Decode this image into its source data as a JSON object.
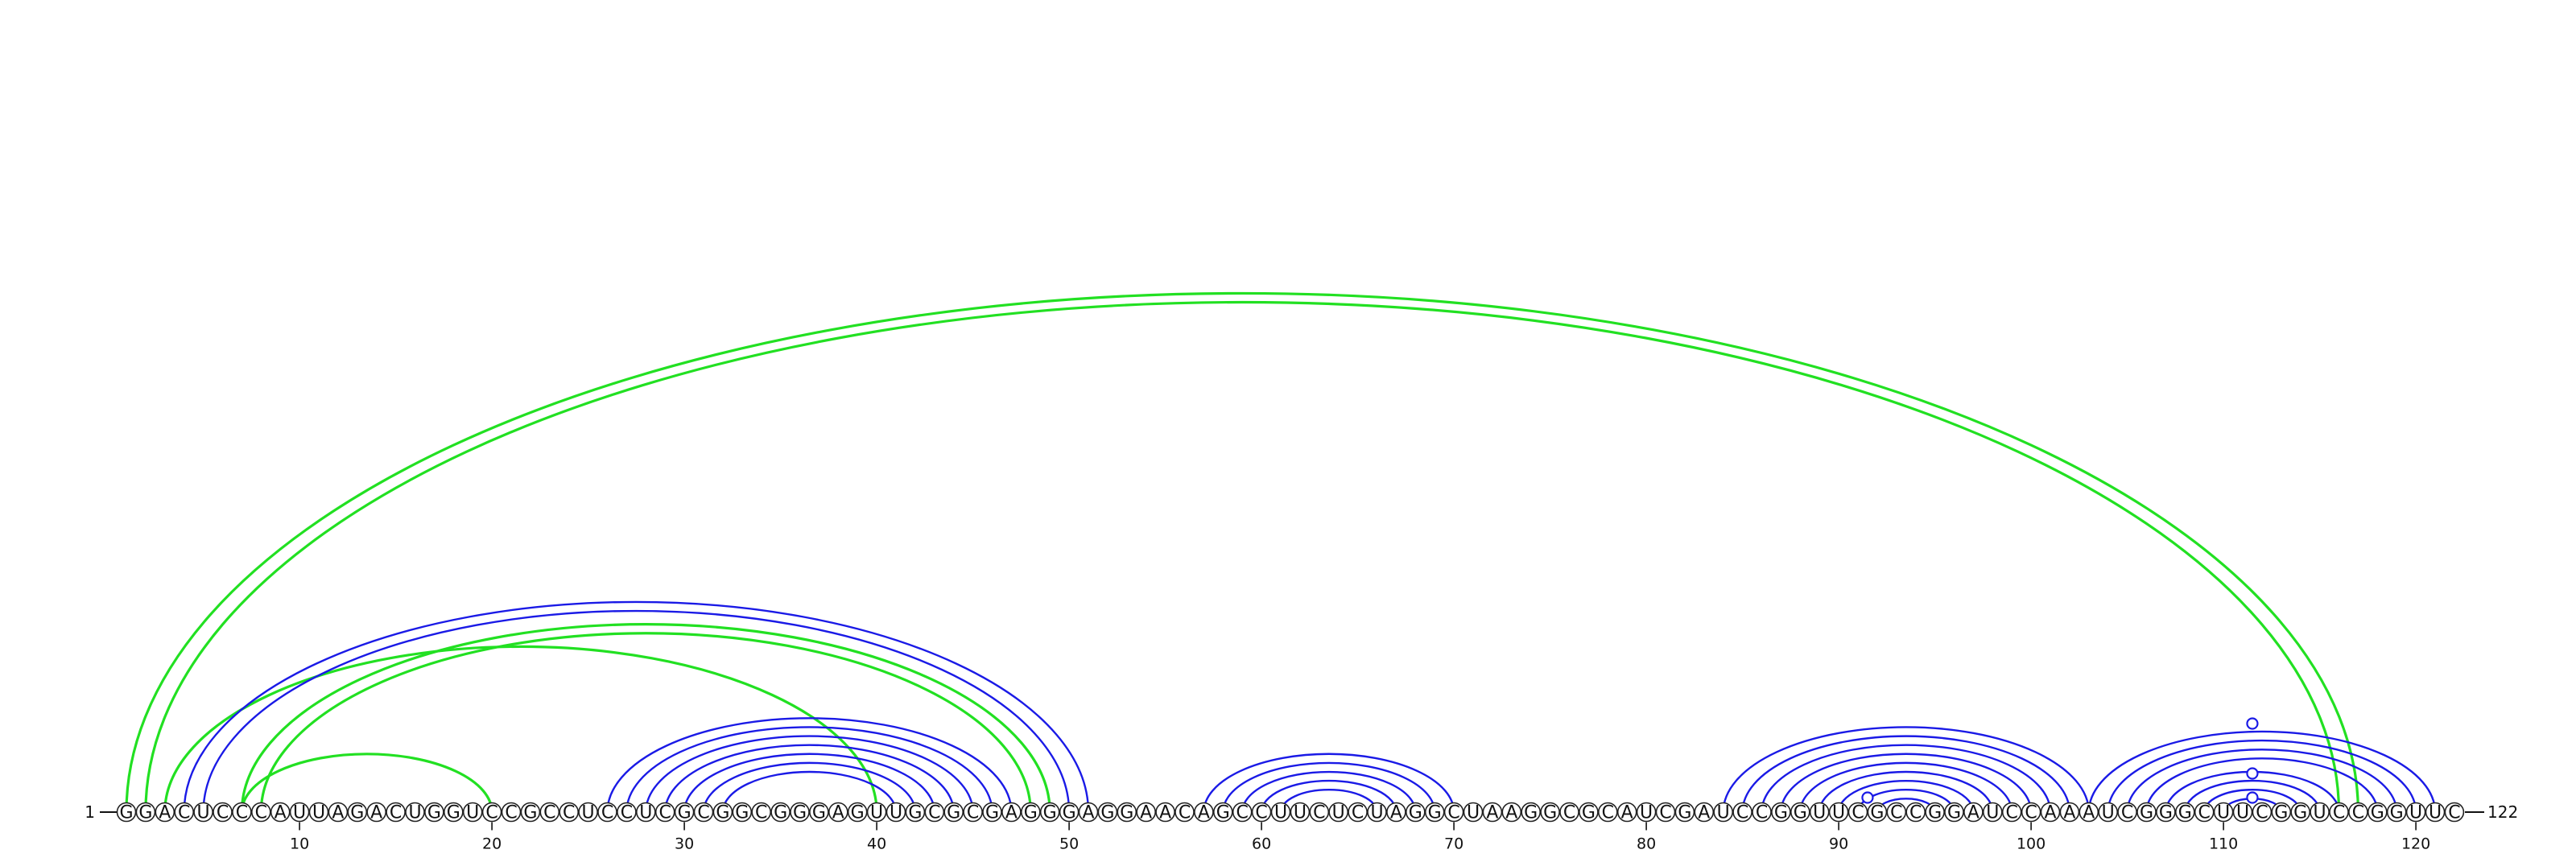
{
  "sequence": "GGACUCCCAUUAGACUGGUCCGCCUCCUCGCGGCGGGAGUUGCGCGAGGGAGGAACAGCCUUCUCUAGGCUAAGGCGCAUCGAUCCGGUUCGCCGGAUCCAAAUCGGGCUUCGGUCCGGUUC",
  "start_label": "1",
  "end_label": "122",
  "ticks": [
    "10",
    "20",
    "30",
    "40",
    "50",
    "60",
    "70",
    "80",
    "90",
    "100",
    "110",
    "120"
  ],
  "colors": {
    "green": "#22e022",
    "blue": "#1a1ae6",
    "text": "#111111"
  },
  "chart_data": {
    "type": "arc-diagram",
    "length": 122,
    "arcs": [
      {
        "color": "green",
        "i": 1,
        "j": 117
      },
      {
        "color": "green",
        "i": 2,
        "j": 116
      },
      {
        "color": "green",
        "i": 3,
        "j": 40
      },
      {
        "color": "green",
        "i": 7,
        "j": 20
      },
      {
        "color": "green",
        "i": 7,
        "j": 49
      },
      {
        "color": "green",
        "i": 8,
        "j": 48
      },
      {
        "color": "blue",
        "i": 4,
        "j": 51
      },
      {
        "color": "blue",
        "i": 5,
        "j": 50
      },
      {
        "color": "blue",
        "i": 26,
        "j": 47
      },
      {
        "color": "blue",
        "i": 27,
        "j": 46
      },
      {
        "color": "blue",
        "i": 28,
        "j": 45
      },
      {
        "color": "blue",
        "i": 29,
        "j": 44
      },
      {
        "color": "blue",
        "i": 30,
        "j": 43
      },
      {
        "color": "blue",
        "i": 31,
        "j": 42
      },
      {
        "color": "blue",
        "i": 32,
        "j": 41
      },
      {
        "color": "blue",
        "i": 57,
        "j": 70
      },
      {
        "color": "blue",
        "i": 58,
        "j": 69
      },
      {
        "color": "blue",
        "i": 59,
        "j": 68
      },
      {
        "color": "blue",
        "i": 60,
        "j": 67
      },
      {
        "color": "blue",
        "i": 61,
        "j": 66
      },
      {
        "color": "blue",
        "i": 84,
        "j": 103
      },
      {
        "color": "blue",
        "i": 85,
        "j": 102
      },
      {
        "color": "blue",
        "i": 86,
        "j": 101
      },
      {
        "color": "blue",
        "i": 87,
        "j": 100
      },
      {
        "color": "blue",
        "i": 88,
        "j": 99
      },
      {
        "color": "blue",
        "i": 89,
        "j": 98
      },
      {
        "color": "blue",
        "i": 90,
        "j": 97
      },
      {
        "color": "blue",
        "i": 91,
        "j": 96
      },
      {
        "color": "blue",
        "i": 92,
        "j": 95
      },
      {
        "color": "blue",
        "i": 103,
        "j": 121
      },
      {
        "color": "blue",
        "i": 104,
        "j": 120
      },
      {
        "color": "blue",
        "i": 105,
        "j": 119
      },
      {
        "color": "blue",
        "i": 106,
        "j": 118
      },
      {
        "color": "blue",
        "i": 107,
        "j": 116
      },
      {
        "color": "blue",
        "i": 108,
        "j": 115
      },
      {
        "color": "blue",
        "i": 109,
        "j": 114
      },
      {
        "color": "blue",
        "i": 110,
        "j": 113
      }
    ],
    "markers": [
      {
        "position": 91.5,
        "arc_height": 18
      },
      {
        "position": 111.5,
        "arc_height": 18
      },
      {
        "position": 111.5,
        "arc_height": 48
      },
      {
        "position": 111.5,
        "arc_height": 110
      }
    ]
  }
}
